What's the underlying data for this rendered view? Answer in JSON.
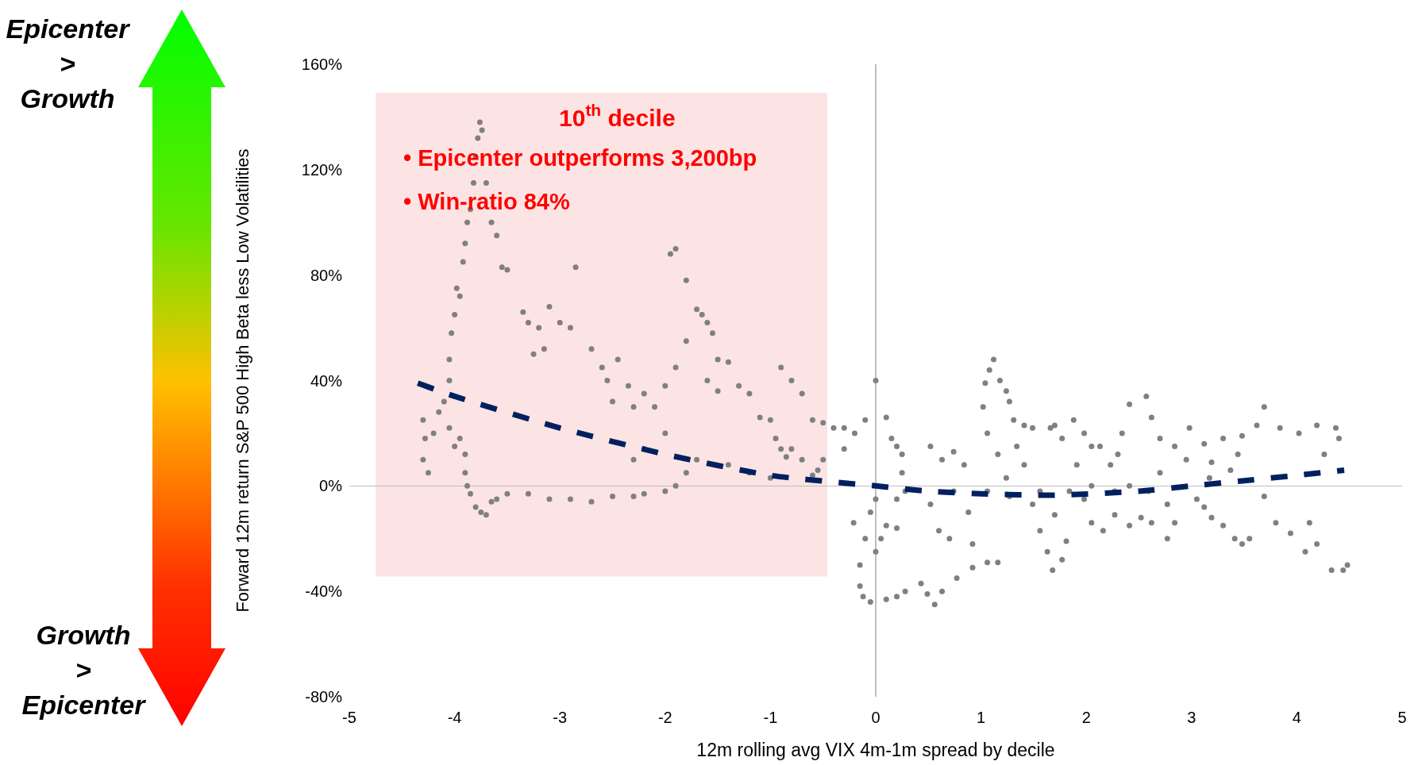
{
  "chart_data": {
    "type": "scatter",
    "xlabel": "12m rolling avg VIX 4m-1m spread by decile",
    "ylabel": "Forward 12m return S&P 500 High Beta less Low Volatilities",
    "xlim": [
      -5,
      5
    ],
    "xticks": [
      -5,
      -4,
      -3,
      -2,
      -1,
      0,
      1,
      2,
      3,
      4,
      5
    ],
    "ylim": [
      -80,
      160
    ],
    "yticks": [
      {
        "value": -80,
        "label": "-80%"
      },
      {
        "value": -40,
        "label": "-40%"
      },
      {
        "value": 0,
        "label": "0%"
      },
      {
        "value": 40,
        "label": "40%"
      },
      {
        "value": 80,
        "label": "80%"
      },
      {
        "value": 120,
        "label": "120%"
      },
      {
        "value": 160,
        "label": "160%"
      }
    ],
    "marker": "circle",
    "bands": [
      {
        "axis": "x",
        "from": -4.75,
        "to": -0.46,
        "label": "10$^{th}$ decile",
        "color": "#fde4e4"
      }
    ],
    "annotations": [
      "Epicenter\n>\nGrowth",
      "Growth\n>\nEpicenter",
      "• Epicenter outperforms 3,200bp",
      "• Win-ratio 84%"
    ],
    "series": [
      {
        "color": "#808080",
        "x": [
          -4.3,
          -4.3,
          -4.28,
          -4.25,
          -4.2,
          -4.15,
          -4.1,
          -4.05,
          -4,
          -3.95,
          -3.9,
          -4.05,
          -4.05,
          -4.03,
          -4,
          -3.98,
          -3.95,
          -3.92,
          -3.9,
          -3.88,
          -3.85,
          -3.82,
          -3.8,
          -3.78,
          -3.76,
          -3.74,
          -3.7,
          -3.65,
          -3.6,
          -3.55,
          -3.5,
          -3.9,
          -3.88,
          -3.85,
          -3.8,
          -3.75,
          -3.7,
          -3.65,
          -3.6,
          -3.5,
          -3.3,
          -3.1,
          -2.9,
          -2.7,
          -2.5,
          -2.3,
          -2.2,
          -2,
          -1.9,
          -1.8,
          -1.7,
          -3.35,
          -3.3,
          -3.2,
          -3.1,
          -3,
          -2.9,
          -3.25,
          -3.15,
          -2.85,
          -2.7,
          -2.6,
          -2.55,
          -2.5,
          -2.45,
          -2.35,
          -2.3,
          -2.2,
          -2.1,
          -2,
          -1.9,
          -1.8,
          -1.7,
          -1.6,
          -1.55,
          -1.6,
          -1.5,
          -1.9,
          -1.95,
          -1.8,
          -1.65,
          -1.5,
          -1.4,
          -1.3,
          -1.2,
          -1.1,
          -1,
          -0.95,
          -0.9,
          -0.85,
          -0.8,
          -0.7,
          -0.9,
          -0.8,
          -0.7,
          -0.6,
          -0.5,
          -0.4,
          -0.3,
          -0.5,
          -0.55,
          -0.6,
          -1,
          -1.2,
          -1.4,
          -2.2,
          -2,
          -2.3,
          -0.3,
          -0.2,
          -0.1,
          0,
          0.1,
          0.15,
          0.2,
          0.25,
          -0.05,
          -0.1,
          -0.15,
          -0.15,
          -0.12,
          -0.05,
          0.1,
          0.2,
          0.28,
          0,
          0.05,
          0.1,
          0,
          0.2,
          0.25,
          0.28,
          1.12,
          1.02,
          1.04,
          1.08,
          1.18,
          1.24,
          1.27,
          1.31,
          2.57,
          2.41,
          2.34,
          2.3,
          2.62,
          2.7,
          3.69,
          3.84,
          4.02,
          4.19,
          4.37,
          4.4,
          4.26,
          3.62,
          3.48,
          3.69,
          3.8,
          3.94,
          4.08,
          4.19,
          4.33,
          4.48,
          4.44,
          4.12,
          3.48,
          3.55,
          3.41,
          3.3,
          3.12,
          3.19,
          0.56,
          0.63,
          0.77,
          0.92,
          1.06,
          1.16,
          0.43,
          0.49,
          -0.21,
          0.2,
          0.52,
          0.63,
          0.74,
          0.84,
          0.52,
          0.6,
          0.7,
          0.92,
          0.88,
          1.06,
          1.16,
          1.24,
          1.34,
          1.41,
          1.49,
          1.49,
          1.56,
          1.63,
          1.68,
          1.77,
          1.81,
          1.7,
          1.66,
          1.77,
          1.88,
          1.98,
          1.91,
          1.98,
          2.05,
          2.16,
          2.27,
          2.41,
          2.52,
          2.62,
          2.77,
          2.84,
          2.13,
          2.23,
          2.41,
          2.59,
          2.7,
          2.84,
          2.95,
          2.98,
          3.12,
          3.19,
          3.3,
          3.37,
          3.44,
          3.05,
          3.17,
          2.77,
          2.27,
          2.05,
          1.84,
          1.56,
          1.27,
          1.06,
          0.74,
          1.41,
          1.7,
          2.05
        ],
        "values": [
          25,
          10,
          18,
          5,
          20,
          28,
          32,
          22,
          15,
          18,
          12,
          40,
          48,
          58,
          65,
          75,
          72,
          85,
          92,
          100,
          105,
          115,
          125,
          132,
          138,
          135,
          115,
          100,
          95,
          83,
          82,
          5,
          0,
          -3,
          -8,
          -10,
          -11,
          -6,
          -5,
          -3,
          -3,
          -5,
          -5,
          -6,
          -4,
          -4,
          -3,
          -2,
          0,
          5,
          10,
          66,
          62,
          60,
          68,
          62,
          60,
          50,
          52,
          83,
          52,
          45,
          40,
          32,
          48,
          38,
          30,
          35,
          30,
          38,
          45,
          55,
          67,
          62,
          58,
          40,
          36,
          90,
          88,
          78,
          65,
          48,
          47,
          38,
          35,
          26,
          25,
          18,
          14,
          11,
          14,
          10,
          45,
          40,
          35,
          25,
          24,
          22,
          14,
          10,
          6,
          4,
          3,
          5,
          8,
          14,
          20,
          10,
          22,
          20,
          25,
          40,
          26,
          18,
          15,
          12,
          -10,
          -20,
          -30,
          -38,
          -42,
          -44,
          -43,
          -42,
          -40,
          -25,
          -20,
          -15,
          -5,
          -5,
          5,
          -2,
          48,
          30,
          39,
          44,
          40,
          36,
          32,
          25,
          34,
          31,
          20,
          12,
          26,
          18,
          30,
          22,
          20,
          23,
          22,
          18,
          12,
          23,
          19,
          -4,
          -14,
          -18,
          -25,
          -22,
          -32,
          -30,
          -32,
          -14,
          -22,
          -20,
          -20,
          -15,
          -8,
          -12,
          -45,
          -40,
          -35,
          -31,
          -29,
          -29,
          -37,
          -41,
          -14,
          -16,
          15,
          10,
          13,
          8,
          -7,
          -17,
          -20,
          -22,
          -10,
          20,
          12,
          3,
          15,
          8,
          22,
          -7,
          -17,
          -25,
          -32,
          -28,
          -21,
          -11,
          22,
          18,
          25,
          20,
          8,
          -5,
          -14,
          -17,
          -11,
          -15,
          -12,
          -14,
          -20,
          -14,
          15,
          8,
          0,
          -2,
          5,
          15,
          10,
          22,
          16,
          9,
          18,
          6,
          12,
          -5,
          3,
          -7,
          -2,
          0,
          -2,
          -2,
          -4,
          -2,
          -2,
          23,
          23,
          15
        ]
      },
      {
        "type": "line",
        "marker": "none",
        "line_style": "dashed",
        "color": "#002060",
        "x": [
          -4.35,
          -4,
          -3,
          -2,
          -1,
          0,
          0.5,
          1,
          1.7,
          2.5,
          3,
          3.5,
          4,
          4.45
        ],
        "values": [
          39,
          34,
          22,
          12,
          4,
          0,
          -2,
          -3,
          -3.5,
          -2,
          0,
          2,
          4,
          6
        ]
      }
    ]
  }
}
